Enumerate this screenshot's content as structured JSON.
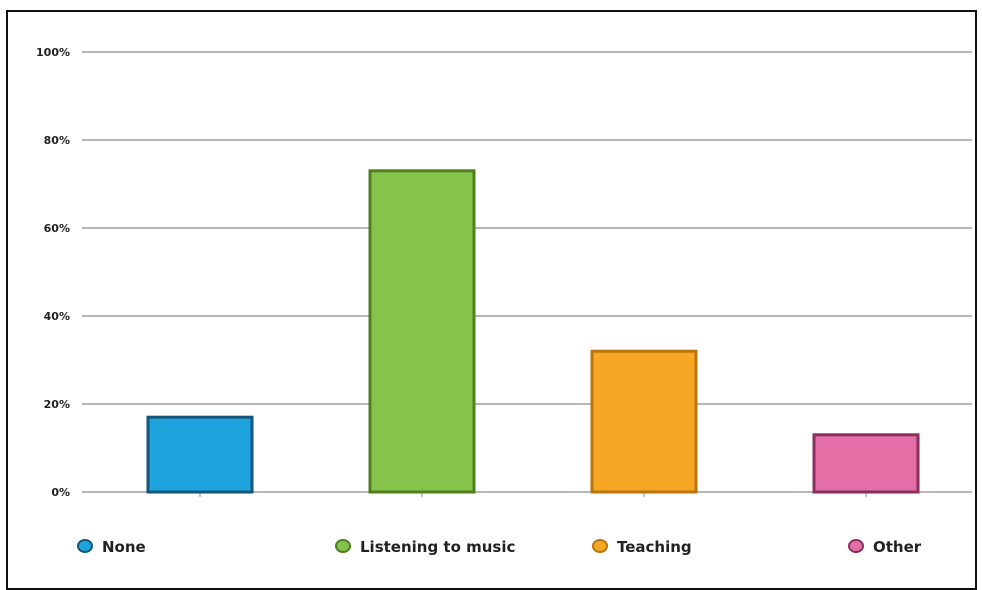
{
  "chart_data": {
    "type": "bar",
    "title": "",
    "xlabel": "",
    "ylabel": "",
    "categories": [
      "None",
      "Listening to music",
      "Teaching",
      "Other"
    ],
    "values": [
      17,
      73,
      32,
      13
    ],
    "ylim": [
      0,
      100
    ],
    "yticks": [
      "0%",
      "20%",
      "40%",
      "60%",
      "80%",
      "100%"
    ],
    "grid": true,
    "legend_position": "bottom",
    "colors": {
      "None": "#1fa3dc",
      "Listening to music": "#86c34a",
      "Teaching": "#f6a724",
      "Other": "#e46fa7"
    },
    "border_colors": {
      "None": "#14577a",
      "Listening to music": "#4f7f20",
      "Teaching": "#b9740c",
      "Other": "#8a2f5e"
    }
  }
}
